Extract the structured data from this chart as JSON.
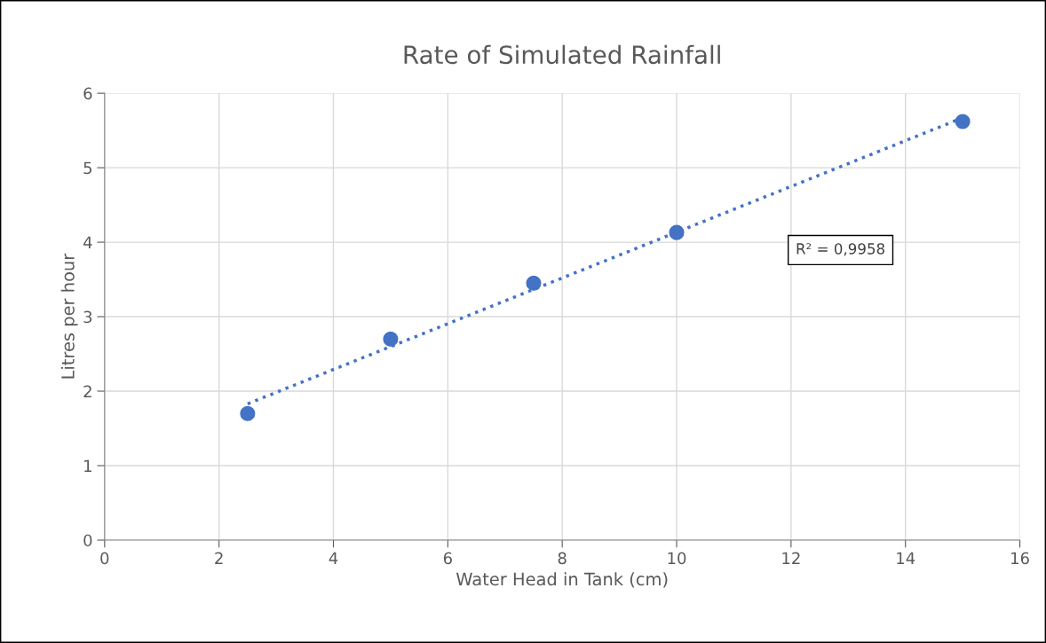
{
  "chart_data": {
    "type": "scatter",
    "title": "Rate of Simulated Rainfall",
    "xlabel": "Water Head in Tank (cm)",
    "ylabel": "Litres per hour",
    "series": [
      {
        "color": "#4472c4",
        "x": [
          2.5,
          5,
          7.5,
          10,
          15
        ],
        "values": [
          1.7,
          2.7,
          3.45,
          4.13,
          5.62
        ],
        "marker": "circle"
      },
      {
        "type": "line",
        "color": "#4472c4",
        "x": [
          2.5,
          15
        ],
        "values": [
          1.83,
          5.67
        ],
        "line_style": "dotted",
        "marker": "none"
      }
    ],
    "annotations": [
      "R² = 0,9958"
    ],
    "xlim": [
      0,
      16
    ],
    "xticks": [
      0,
      2,
      4,
      6,
      8,
      10,
      12,
      14,
      16
    ],
    "ylim": [
      0,
      6
    ],
    "yticks": [
      0,
      1,
      2,
      3,
      4,
      5,
      6
    ],
    "grid": true,
    "legend": false
  }
}
